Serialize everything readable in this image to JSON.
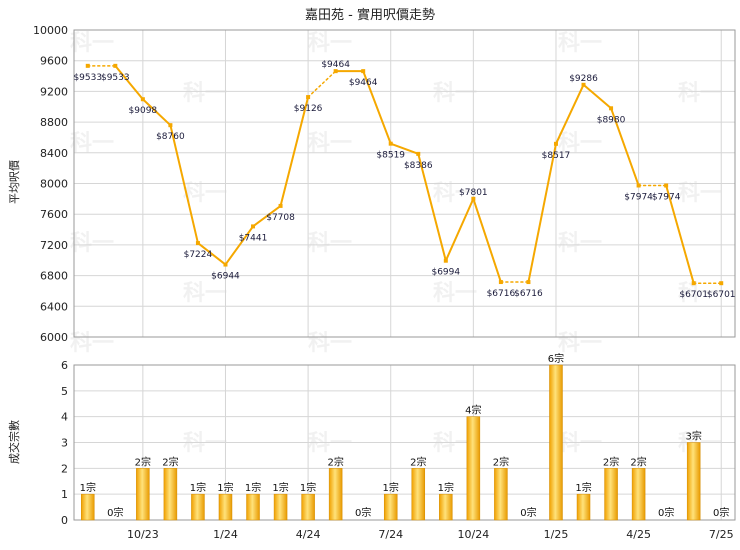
{
  "title": "嘉田苑 - 實用呎價走勢",
  "chart_data": [
    {
      "type": "line",
      "ylabel": "平均呎價",
      "ylim": [
        6000,
        10000
      ],
      "yticks": [
        6000,
        6400,
        6800,
        7200,
        7600,
        8000,
        8400,
        8800,
        9200,
        9600,
        10000
      ],
      "series": [
        {
          "values": [
            9533,
            9533,
            9098,
            8760,
            7224,
            6944,
            7441,
            7708,
            9126,
            9464,
            9464,
            8519,
            8386,
            6994,
            7801,
            6716,
            6716,
            8517,
            9286,
            8980,
            7974,
            7974,
            6701,
            6701
          ],
          "labels": [
            "$9533",
            "$9533",
            "$9098",
            "$8760",
            "$7224",
            "$6944",
            "$7441",
            "$7708",
            "$9126",
            "$9464",
            "$9464",
            "$8519",
            "$8386",
            "$6994",
            "$7801",
            "$6716",
            "$6716",
            "$8517",
            "$9286",
            "$8980",
            "$7974",
            "$7974",
            "$6701",
            "$6701"
          ],
          "dotted": [
            true,
            false,
            false,
            false,
            false,
            false,
            false,
            false,
            true,
            false,
            false,
            false,
            false,
            false,
            false,
            true,
            false,
            false,
            false,
            false,
            true,
            false,
            true
          ],
          "color": "#f5a800"
        }
      ]
    },
    {
      "type": "bar",
      "ylabel": "成交宗數",
      "ylim": [
        0,
        6
      ],
      "yticks": [
        0,
        1,
        2,
        3,
        4,
        5,
        6
      ],
      "x_tick_labels": [
        "10/23",
        "1/24",
        "4/24",
        "7/24",
        "10/24",
        "1/25",
        "4/25",
        "7/25"
      ],
      "values": [
        1,
        0,
        2,
        2,
        1,
        1,
        1,
        1,
        1,
        2,
        0,
        1,
        2,
        1,
        4,
        2,
        0,
        6,
        1,
        2,
        2,
        0,
        3,
        0
      ],
      "labels": [
        "1宗",
        "0宗",
        "2宗",
        "2宗",
        "1宗",
        "1宗",
        "1宗",
        "1宗",
        "1宗",
        "2宗",
        "0宗",
        "1宗",
        "2宗",
        "1宗",
        "4宗",
        "2宗",
        "0宗",
        "6宗",
        "1宗",
        "2宗",
        "2宗",
        "0宗",
        "3宗",
        "0宗"
      ],
      "color": "#f5a800"
    }
  ],
  "watermark": "科一"
}
